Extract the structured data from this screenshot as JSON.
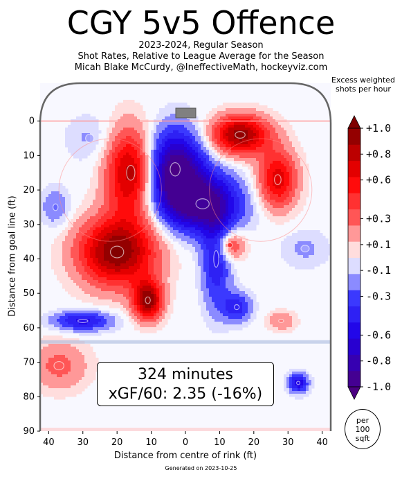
{
  "title": "CGY 5v5 Offence",
  "subtitle_lines": [
    "2023-2024, Regular Season",
    "Shot Rates, Relative to League Average for the Season",
    "Micah Blake McCurdy, @IneffectiveMath, hockeyviz.com"
  ],
  "summary": {
    "minutes": "324 minutes",
    "xgf": "xGF/60: 2.35 (-16%)"
  },
  "footer": "Generated on 2023-10-25",
  "per_area_label": "per 100 sqft",
  "colors": {
    "positive": "#ff0000",
    "negative": "#0000ff",
    "max": "#800000",
    "min": "#4b0082",
    "rink": "#666666"
  },
  "chart_data": {
    "type": "heatmap",
    "xlabel": "Distance from centre of rink (ft)",
    "ylabel": "Distance from goal line (ft)",
    "xlim": [
      -42.5,
      42.5
    ],
    "ylim": [
      90,
      -11
    ],
    "xticks": [
      -40,
      -30,
      -20,
      -10,
      0,
      10,
      20,
      30,
      40
    ],
    "xtick_labels": [
      "40",
      "30",
      "20",
      "10",
      "0",
      "10",
      "20",
      "30",
      "40"
    ],
    "yticks": [
      0,
      10,
      20,
      30,
      40,
      50,
      60,
      70,
      80,
      90
    ],
    "colorbar": {
      "title": "Excess weighted shots per hour",
      "range": [
        -1.0,
        1.0
      ],
      "levels": 16,
      "ticks": [
        1.0,
        0.8,
        0.6,
        0.3,
        0.1,
        -0.1,
        -0.3,
        -0.6,
        -0.8,
        -1.0
      ],
      "tick_labels": [
        "+1.0",
        "+0.8",
        "+0.6",
        "+0.3",
        "+0.1",
        "-0.1",
        "-0.3",
        "-0.6",
        "-0.8",
        "-1.0"
      ]
    },
    "hotspots": [
      {
        "x": -20,
        "y": 38,
        "value": 1.0,
        "sx": 8,
        "sy": 7
      },
      {
        "x": -16,
        "y": 15,
        "value": 0.85,
        "sx": 5,
        "sy": 9
      },
      {
        "x": -11,
        "y": 52,
        "value": 0.95,
        "sx": 3,
        "sy": 4
      },
      {
        "x": 16,
        "y": 4,
        "value": 0.95,
        "sx": 6,
        "sy": 4
      },
      {
        "x": 27,
        "y": 17,
        "value": 0.7,
        "sx": 4,
        "sy": 6
      },
      {
        "x": 13,
        "y": 36,
        "value": 0.5,
        "sx": 3,
        "sy": 3
      },
      {
        "x": 28,
        "y": 58,
        "value": 0.25,
        "sx": 3,
        "sy": 2
      },
      {
        "x": -37,
        "y": 71,
        "value": 0.3,
        "sx": 6,
        "sy": 5
      },
      {
        "x": -3,
        "y": 14,
        "value": -1.0,
        "sx": 6,
        "sy": 8
      },
      {
        "x": 5,
        "y": 24,
        "value": -0.9,
        "sx": 8,
        "sy": 6
      },
      {
        "x": 9,
        "y": 40,
        "value": -0.5,
        "sx": 3,
        "sy": 10
      },
      {
        "x": 15,
        "y": 54,
        "value": -0.45,
        "sx": 3,
        "sy": 3
      },
      {
        "x": -30,
        "y": 58,
        "value": -0.55,
        "sx": 6,
        "sy": 2
      },
      {
        "x": 33,
        "y": 76,
        "value": -0.6,
        "sx": 2,
        "sy": 2
      },
      {
        "x": -38,
        "y": 25,
        "value": -0.25,
        "sx": 3,
        "sy": 4
      },
      {
        "x": 35,
        "y": 37,
        "value": -0.15,
        "sx": 5,
        "sy": 4
      },
      {
        "x": -28,
        "y": 5,
        "value": -0.15,
        "sx": 5,
        "sy": 5
      }
    ]
  }
}
